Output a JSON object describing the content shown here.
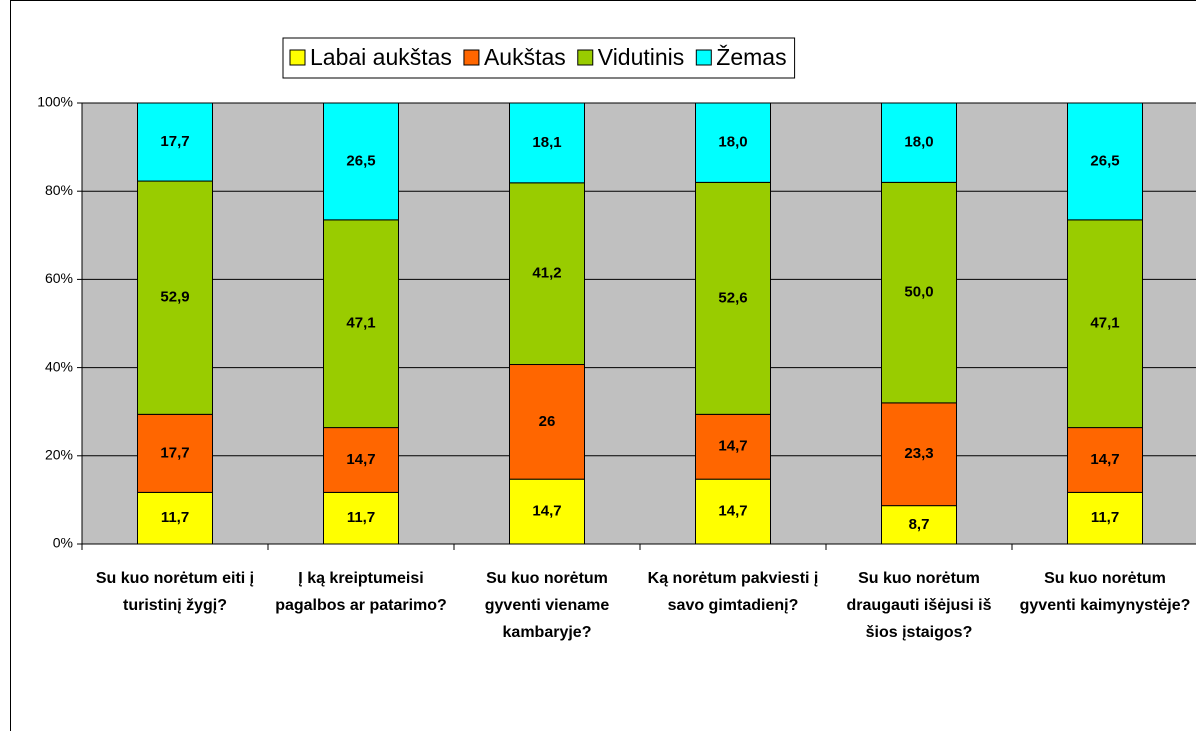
{
  "chart_data": {
    "type": "stacked_bar_percent",
    "categories": [
      "Su kuo norėtum eiti į turistinį žygį?",
      "Į ką kreiptumeisi pagalbos ar patarimo?",
      "Su kuo norėtum gyventi viename kambaryje?",
      "Ką norėtum pakviesti į savo gimtadienį?",
      "Su kuo norėtum draugauti išėjusi iš šios įstaigos?",
      "Su kuo norėtum gyventi kaimynystėje?"
    ],
    "series": [
      {
        "name": "Labai aukštas",
        "color": "#ffff00",
        "values": [
          11.7,
          11.7,
          14.7,
          14.7,
          8.7,
          11.7
        ],
        "value_labels": [
          "11,7",
          "11,7",
          "14,7",
          "14,7",
          "8,7",
          "11,7"
        ]
      },
      {
        "name": "Aukštas",
        "color": "#ff6600",
        "values": [
          17.7,
          14.7,
          26,
          14.7,
          23.3,
          14.7
        ],
        "value_labels": [
          "17,7",
          "14,7",
          "26",
          "14,7",
          "23,3",
          "14,7"
        ]
      },
      {
        "name": "Vidutinis",
        "color": "#99cc00",
        "values": [
          52.9,
          47.1,
          41.2,
          52.6,
          50.0,
          47.1
        ],
        "value_labels": [
          "52,9",
          "47,1",
          "41,2",
          "52,6",
          "50,0",
          "47,1"
        ]
      },
      {
        "name": "Žemas",
        "color": "#00ffff",
        "values": [
          17.7,
          26.5,
          18.1,
          18.0,
          18.0,
          26.5
        ],
        "value_labels": [
          "17,7",
          "26,5",
          "18,1",
          "18,0",
          "18,0",
          "26,5"
        ]
      }
    ],
    "ylim": [
      0,
      100
    ],
    "yticks": [
      {
        "value": 0,
        "label": "0%"
      },
      {
        "value": 20,
        "label": "20%"
      },
      {
        "value": 40,
        "label": "40%"
      },
      {
        "value": 60,
        "label": "60%"
      },
      {
        "value": 80,
        "label": "80%"
      },
      {
        "value": 100,
        "label": "100%"
      }
    ],
    "grid": true,
    "legend": "top",
    "plot_background": "#c0c0c0"
  }
}
